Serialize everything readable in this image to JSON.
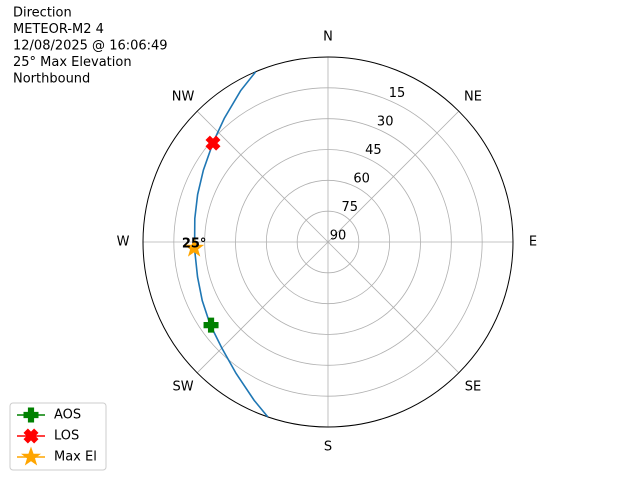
{
  "chart_data": {
    "type": "polar",
    "title_lines": [
      "Direction",
      "METEOR-M2 4",
      "12/08/2025 @ 16:06:49",
      "25° Max Elevation",
      "Northbound"
    ],
    "theta_zero": "N",
    "theta_direction": "clockwise",
    "rlim": [
      90,
      0
    ],
    "rticks": [
      90,
      75,
      60,
      45,
      30,
      15
    ],
    "thetaticks": [
      {
        "value": 0,
        "label": "N"
      },
      {
        "value": 45,
        "label": "NE"
      },
      {
        "value": 90,
        "label": "E"
      },
      {
        "value": 135,
        "label": "SE"
      },
      {
        "value": 180,
        "label": "S"
      },
      {
        "value": 225,
        "label": "SW"
      },
      {
        "value": 270,
        "label": "W"
      },
      {
        "value": 315,
        "label": "NW"
      }
    ],
    "grid": true,
    "legend": "lower left",
    "series": [
      {
        "color": "#1f77b4",
        "theta": [
          199,
          205,
          215,
          225,
          235,
          245,
          255,
          267,
          280,
          290,
          300,
          311,
          320,
          330,
          337
        ],
        "values": [
          0,
          5,
          12,
          17,
          20,
          22.5,
          24.3,
          25,
          24.2,
          22.5,
          20,
          16,
          11.5,
          5,
          0
        ]
      },
      {
        "name": "AOS",
        "color": "green",
        "marker": "plus",
        "theta": [
          234.6
        ],
        "values": [
          20.2
        ]
      },
      {
        "name": "LOS",
        "color": "red",
        "marker": "x",
        "theta": [
          310.7
        ],
        "values": [
          16.2
        ]
      },
      {
        "name": "Max El",
        "color": "orange",
        "marker": "star",
        "theta": [
          267.4
        ],
        "values": [
          24.8
        ]
      }
    ],
    "annotations": [
      {
        "text": "25°",
        "theta": 267.4,
        "r": 24.8
      }
    ]
  }
}
